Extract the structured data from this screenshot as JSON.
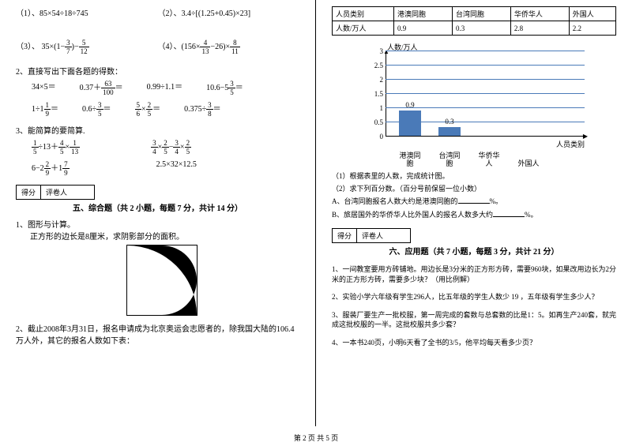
{
  "left": {
    "p1_1": "（1）、85×54÷18÷745",
    "p1_2": "（2）、3.4÷[(1.25+0.45)×23]",
    "p1_3_pre": "（3）、 35×(1−",
    "p1_3_f1n": "3",
    "p1_3_f1d": "7",
    "p1_3_mid": ")−",
    "p1_3_f2n": "5",
    "p1_3_f2d": "12",
    "p1_4_pre": "（4）、(156×",
    "p1_4_f1n": "4",
    "p1_4_f1d": "13",
    "p1_4_mid": "−26)×",
    "p1_4_f2n": "8",
    "p1_4_f2d": "11",
    "sec2": "2、直接写出下面各题的得数：",
    "s2_1": "34×5＝",
    "s2_2_pre": "0.37＋",
    "s2_2_n": "63",
    "s2_2_d": "100",
    "s2_2_post": "＝",
    "s2_3": "0.99÷1.1＝",
    "s2_4_pre": "10.6−5",
    "s2_4_n": "3",
    "s2_4_d": "5",
    "s2_4_post": "＝",
    "s2_5_pre": "1÷1",
    "s2_5_n": "1",
    "s2_5_d": "9",
    "s2_5_post": "＝",
    "s2_6_pre": "0.6÷",
    "s2_6_n": "3",
    "s2_6_d": "5",
    "s2_6_post": "＝",
    "s2_7_f1n": "5",
    "s2_7_f1d": "6",
    "s2_7_mid": "×",
    "s2_7_f2n": "2",
    "s2_7_f2d": "5",
    "s2_7_post": "＝",
    "s2_8_pre": "0.375÷",
    "s2_8_n": "3",
    "s2_8_d": "8",
    "s2_8_post": "＝",
    "sec3": "3、能简算的要简算.",
    "s3_1_f1n": "1",
    "s3_1_f1d": "5",
    "s3_1_m1": "÷13＋",
    "s3_1_f2n": "4",
    "s3_1_f2d": "5",
    "s3_1_m2": "×",
    "s3_1_f3n": "1",
    "s3_1_f3d": "13",
    "s3_2_f1n": "3",
    "s3_2_f1d": "4",
    "s3_2_m1": "×",
    "s3_2_f2n": "2",
    "s3_2_f2d": "5",
    "s3_2_m2": "−",
    "s3_2_f3n": "3",
    "s3_2_f3d": "4",
    "s3_2_m3": "×",
    "s3_2_f4n": "2",
    "s3_2_f4d": "5",
    "s3_3_pre": "6−2",
    "s3_3_f1n": "2",
    "s3_3_f1d": "9",
    "s3_3_m1": "＋1",
    "s3_3_f2n": "7",
    "s3_3_f2d": "9",
    "s3_4": "2.5×32×12.5",
    "score1": "得分",
    "score2": "评卷人",
    "section5_title": "五、综合题（共 2 小题，每题 7 分，共计 14 分）",
    "q1": "1、图形与计算。",
    "q1_sub": "正方形的边长是8厘米，求阴影部分的面积。",
    "q2": "2、截止2008年3月31日，报名申请成为北京奥运会志愿者的，除我国大陆的106.4万人外，其它的报名人数如下表："
  },
  "right": {
    "table": {
      "h1": "人员类别",
      "h2": "港澳同胞",
      "h3": "台湾同胞",
      "h4": "华侨华人",
      "h5": "外国人",
      "r1": "人数/万人",
      "r2": "0.9",
      "r3": "0.3",
      "r4": "2.8",
      "r5": "2.2"
    },
    "chart": {
      "y_title": "人数/万人",
      "y_labels": [
        "0",
        "0.5",
        "1",
        "1.5",
        "2",
        "2.5",
        "3"
      ],
      "bars": [
        {
          "label": "港澳同胞",
          "value": 0.9,
          "show": "0.9"
        },
        {
          "label": "台湾同胞",
          "value": 0.3,
          "show": "0.3"
        },
        {
          "label": "华侨华人",
          "value": 0,
          "show": ""
        },
        {
          "label": "外国人",
          "value": 0,
          "show": ""
        }
      ],
      "x_title": "人员类别",
      "bar_color": "#4a7ab8",
      "grid_color": "#4a7ab8"
    },
    "cq1": "（1）根据表里的人数，完成统计图。",
    "cq2": "（2）求下列百分数。（百分号前保留一位小数）",
    "cqA": "A、台湾同胞报名人数大约是港澳同胞的",
    "cqA_suf": "%。",
    "cqB": "B、旅居国外的华侨华人比外国人的报名人数多大约",
    "cqB_suf": "%。",
    "score1": "得分",
    "score2": "评卷人",
    "section6_title": "六、应用题（共 7 小题，每题 3 分，共计 21 分）",
    "aq1": "1、一间教室要用方砖铺地。用边长是3分米的正方形方砖，需要960块，如果改用边长为2分米的正方形方砖，需要多少块？（用比例解）",
    "aq2": "2、实验小学六年级有学生296人，比五年级的学生人数少 19 ，五年级有学生多少人？",
    "aq3": "3、服装厂要生产一批校服，第一周完成的套数与总套数的比是1：5。如再生产240套，就完成这批校服的一半。这批校服共多少套？",
    "aq4": "4、一本书240页，小明6天看了全书的3/5，他平均每天看多少页？"
  },
  "footer": "第 2 页 共 5 页"
}
